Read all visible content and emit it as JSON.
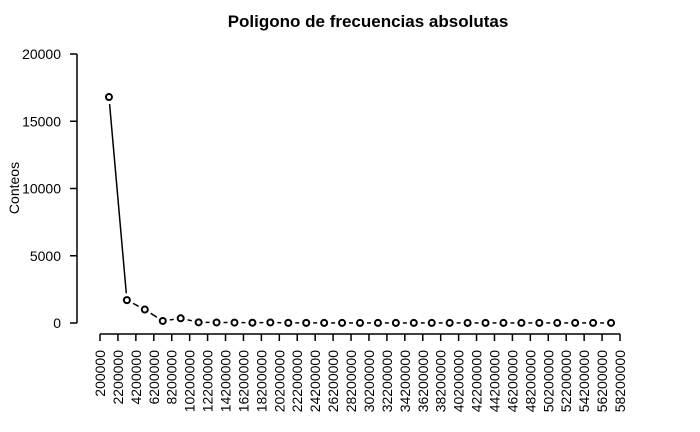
{
  "chart_data": {
    "type": "line",
    "title": "Poligono de frecuencias absolutas",
    "xlabel": "",
    "ylabel": "Conteos",
    "ylim": [
      0,
      20000
    ],
    "yticks": [
      0,
      5000,
      10000,
      15000,
      20000
    ],
    "xticks": [
      "200000",
      "2200000",
      "4200000",
      "6200000",
      "8200000",
      "10200000",
      "12200000",
      "14200000",
      "16200000",
      "18200000",
      "20200000",
      "22200000",
      "24200000",
      "26200000",
      "28200000",
      "30200000",
      "32200000",
      "34200000",
      "36200000",
      "38200000",
      "40200000",
      "42200000",
      "44200000",
      "46200000",
      "48200000",
      "50200000",
      "52200000",
      "54200000",
      "56200000",
      "58200000"
    ],
    "series": [
      {
        "x": [
          1200000,
          3200000,
          5200000,
          7200000,
          9200000,
          11200000,
          13200000,
          15200000,
          17200000,
          19200000,
          21200000,
          23200000,
          25200000,
          27200000,
          29200000,
          31200000,
          33200000,
          35200000,
          37200000,
          39200000,
          41200000,
          43200000,
          45200000,
          47200000,
          49200000,
          51200000,
          53200000,
          55200000,
          57200000
        ],
        "y": [
          16800,
          1700,
          1000,
          150,
          350,
          50,
          40,
          30,
          20,
          40,
          10,
          10,
          5,
          5,
          5,
          5,
          5,
          5,
          5,
          5,
          5,
          5,
          5,
          5,
          5,
          5,
          5,
          5,
          5
        ]
      }
    ],
    "grid": false,
    "legend": "none"
  }
}
